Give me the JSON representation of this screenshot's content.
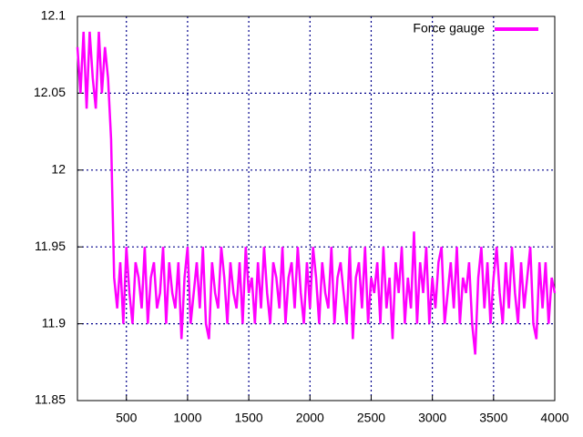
{
  "chart_data": {
    "type": "line",
    "x": [
      100,
      125,
      150,
      175,
      200,
      225,
      250,
      275,
      300,
      325,
      350,
      375,
      400,
      425,
      450,
      475,
      500,
      525,
      550,
      575,
      600,
      625,
      650,
      675,
      700,
      725,
      750,
      775,
      800,
      825,
      850,
      875,
      900,
      925,
      950,
      975,
      1000,
      1025,
      1050,
      1075,
      1100,
      1125,
      1150,
      1175,
      1200,
      1225,
      1250,
      1275,
      1300,
      1325,
      1350,
      1375,
      1400,
      1425,
      1450,
      1475,
      1500,
      1525,
      1550,
      1575,
      1600,
      1625,
      1650,
      1675,
      1700,
      1725,
      1750,
      1775,
      1800,
      1825,
      1850,
      1875,
      1900,
      1925,
      1950,
      1975,
      2000,
      2025,
      2050,
      2075,
      2100,
      2125,
      2150,
      2175,
      2200,
      2225,
      2250,
      2275,
      2300,
      2325,
      2350,
      2375,
      2400,
      2425,
      2450,
      2475,
      2500,
      2525,
      2550,
      2575,
      2600,
      2625,
      2650,
      2675,
      2700,
      2725,
      2750,
      2775,
      2800,
      2825,
      2850,
      2875,
      2900,
      2925,
      2950,
      2975,
      3000,
      3025,
      3050,
      3075,
      3100,
      3125,
      3150,
      3175,
      3200,
      3225,
      3250,
      3275,
      3300,
      3325,
      3350,
      3375,
      3400,
      3425,
      3450,
      3475,
      3500,
      3525,
      3550,
      3575,
      3600,
      3625,
      3650,
      3675,
      3700,
      3725,
      3750,
      3775,
      3800,
      3825,
      3850,
      3875,
      3900,
      3925,
      3950,
      3975,
      4000
    ],
    "series": [
      {
        "name": "Force gauge",
        "color": "#ff00ff",
        "values": [
          12.08,
          12.05,
          12.09,
          12.04,
          12.09,
          12.06,
          12.04,
          12.09,
          12.05,
          12.08,
          12.06,
          12.02,
          11.93,
          11.91,
          11.94,
          11.9,
          11.95,
          11.92,
          11.9,
          11.94,
          11.93,
          11.91,
          11.95,
          11.9,
          11.93,
          11.94,
          11.91,
          11.92,
          11.95,
          11.9,
          11.94,
          11.92,
          11.91,
          11.94,
          11.89,
          11.93,
          11.95,
          11.9,
          11.92,
          11.94,
          11.91,
          11.95,
          11.9,
          11.89,
          11.94,
          11.92,
          11.91,
          11.95,
          11.93,
          11.9,
          11.94,
          11.92,
          11.91,
          11.94,
          11.9,
          11.95,
          11.92,
          11.93,
          11.9,
          11.94,
          11.91,
          11.95,
          11.92,
          11.9,
          11.94,
          11.93,
          11.91,
          11.95,
          11.9,
          11.93,
          11.94,
          11.91,
          11.95,
          11.92,
          11.9,
          11.94,
          11.91,
          11.95,
          11.93,
          11.9,
          11.94,
          11.92,
          11.91,
          11.95,
          11.9,
          11.93,
          11.94,
          11.92,
          11.9,
          11.95,
          11.89,
          11.93,
          11.94,
          11.91,
          11.95,
          11.9,
          11.93,
          11.92,
          11.94,
          11.9,
          11.95,
          11.91,
          11.93,
          11.89,
          11.94,
          11.92,
          11.95,
          11.9,
          11.93,
          11.91,
          11.96,
          11.9,
          11.94,
          11.92,
          11.95,
          11.9,
          11.93,
          11.91,
          11.94,
          11.95,
          11.9,
          11.92,
          11.94,
          11.91,
          11.95,
          11.9,
          11.93,
          11.92,
          11.94,
          11.9,
          11.88,
          11.93,
          11.95,
          11.91,
          11.94,
          11.9,
          11.93,
          11.95,
          11.92,
          11.9,
          11.94,
          11.91,
          11.95,
          11.92,
          11.9,
          11.94,
          11.91,
          11.93,
          11.95,
          11.9,
          11.89,
          11.94,
          11.91,
          11.94,
          11.9,
          11.93,
          11.92
        ]
      }
    ],
    "xlim": [
      100,
      4000
    ],
    "xticks": [
      500,
      1000,
      1500,
      2000,
      2500,
      3000,
      3500,
      4000
    ],
    "ylim": [
      11.85,
      12.1
    ],
    "yticks": [
      11.85,
      11.9,
      11.95,
      12,
      12.05,
      12.1
    ],
    "grid": true,
    "legend": "top-right"
  }
}
